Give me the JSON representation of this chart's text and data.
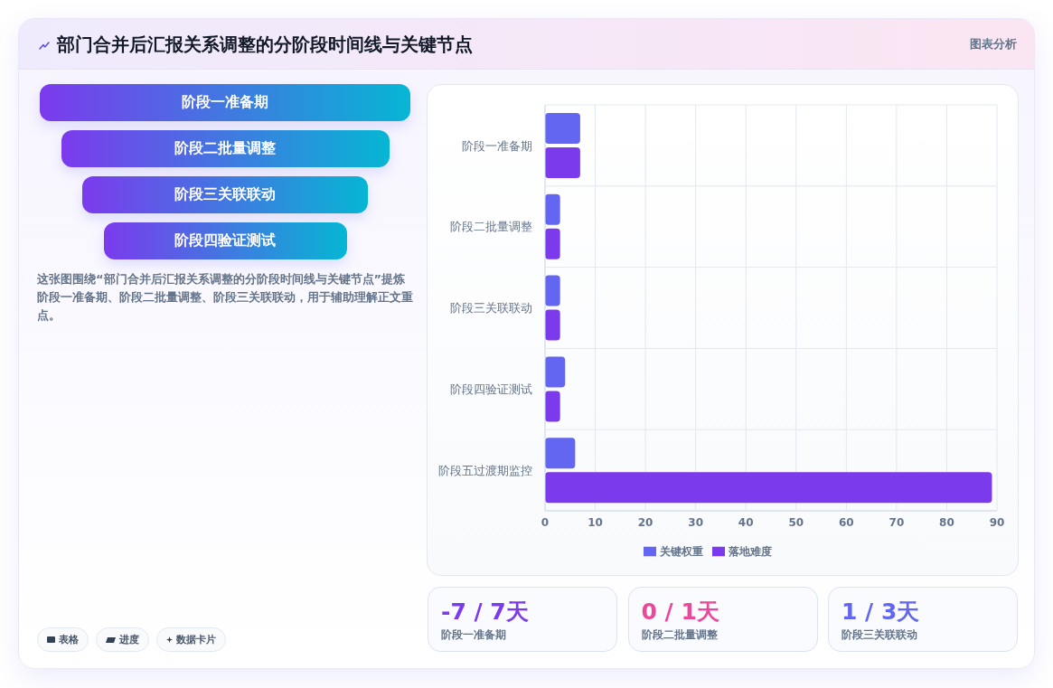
{
  "chart_data": [
    {
      "type": "other",
      "title": "部门合并后汇报关系调整的分阶段时间线与关键节点",
      "categories": [
        "阶段一准备期",
        "阶段二批量调整",
        "阶段三关联联动",
        "阶段四验证测试"
      ],
      "annotations": [
        "图表分析",
        "这张图围绕“部门合并后汇报关系调整的分阶段时间线与关键节点”提炼阶段一准备期、阶段二批量调整、阶段三关联联动，用于辅助理解正文重点。",
        "表格",
        "进度",
        "数据卡片"
      ]
    },
    {
      "type": "bar",
      "orientation": "horizontal",
      "categories": [
        "阶段一准备期",
        "阶段二批量调整",
        "阶段三关联联动",
        "阶段四验证测试",
        "阶段五过渡期监控"
      ],
      "series": [
        {
          "name": "关键权重",
          "color": "#6366f1",
          "values": [
            7,
            3,
            3,
            4,
            6
          ]
        },
        {
          "name": "落地难度",
          "color": "#7c3aed",
          "values": [
            7,
            3,
            3,
            3,
            89
          ]
        }
      ],
      "xlim": [
        0,
        90
      ],
      "xticks": [
        0,
        10,
        20,
        30,
        40,
        50,
        60,
        70,
        80,
        90
      ],
      "grid": true,
      "legend": "bottom"
    },
    {
      "type": "other",
      "categories": [
        "阶段一准备期",
        "阶段二批量调整",
        "阶段三关联联动"
      ],
      "value_labels": [
        "-7 / 7天",
        "0 / 1天",
        "1 / 3天"
      ]
    }
  ]
}
